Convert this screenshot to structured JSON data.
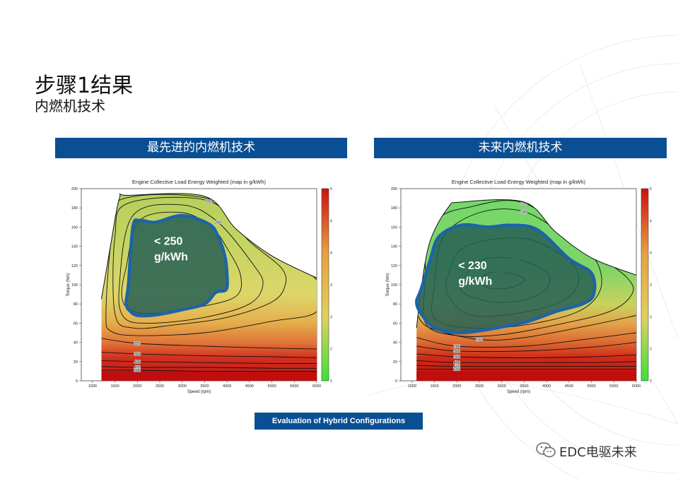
{
  "title": "步骤1结果",
  "subtitle": "内燃机技术",
  "panels": [
    {
      "header": "最先进的内燃机技术"
    },
    {
      "header": "未来内燃机技术"
    }
  ],
  "chart_data": [
    {
      "type": "heatmap",
      "title": "Engine Collective Load Energy Weighted (map in g/kWh)",
      "xlabel": "Speed (rpm)",
      "ylabel": "Torque (Nm)",
      "xlim": [
        750,
        6000
      ],
      "ylim": [
        0,
        200
      ],
      "xticks": [
        1000,
        1500,
        2000,
        2500,
        3000,
        3500,
        4000,
        4500,
        5000,
        5500,
        6000
      ],
      "yticks": [
        0,
        20,
        40,
        60,
        80,
        100,
        120,
        140,
        160,
        180,
        200
      ],
      "colorbar": {
        "min": 200,
        "max": 500,
        "ticks": [
          200,
          250,
          300,
          350,
          400,
          450,
          500
        ],
        "colors": [
          "#3ae23a",
          "#e0d060",
          "#e8a040",
          "#cc1010"
        ]
      },
      "max_torque_curve": [
        [
          1200,
          85
        ],
        [
          1400,
          140
        ],
        [
          1600,
          190
        ],
        [
          1800,
          193
        ],
        [
          3500,
          192
        ],
        [
          4200,
          158
        ],
        [
          5000,
          130
        ],
        [
          6000,
          107
        ]
      ],
      "contours": [
        {
          "level": 250,
          "points": [
            [
              1750,
              118
            ],
            [
              2050,
              167
            ],
            [
              3000,
              175
            ],
            [
              3650,
              160
            ],
            [
              4000,
              138
            ],
            [
              4300,
              110
            ],
            [
              4200,
              88
            ],
            [
              3400,
              77
            ],
            [
              2300,
              70
            ],
            [
              1800,
              75
            ],
            [
              1650,
              90
            ]
          ]
        },
        {
          "level": 260,
          "points": [
            [
              1600,
              100
            ],
            [
              1900,
              172
            ],
            [
              3000,
              183
            ],
            [
              3800,
              165
            ],
            [
              4600,
              120
            ],
            [
              4800,
              100
            ],
            [
              4500,
              80
            ],
            [
              3500,
              66
            ],
            [
              2300,
              60
            ],
            [
              1700,
              66
            ]
          ]
        },
        {
          "level": 280,
          "points": [
            [
              1500,
              70
            ],
            [
              1500,
              150
            ],
            [
              1800,
              185
            ],
            [
              3600,
              187
            ],
            [
              4500,
              145
            ],
            [
              5200,
              118
            ],
            [
              5300,
              100
            ],
            [
              5000,
              82
            ],
            [
              4000,
              66
            ],
            [
              2800,
              58
            ],
            [
              1900,
              55
            ]
          ]
        },
        {
          "level": 300,
          "points": [
            [
              1300,
              70
            ],
            [
              1400,
              140
            ],
            [
              1600,
              188
            ],
            [
              3700,
              188
            ],
            [
              4800,
              140
            ],
            [
              6000,
              105
            ],
            [
              6000,
              72
            ],
            [
              5000,
              62
            ],
            [
              3500,
              50
            ],
            [
              2000,
              47
            ],
            [
              1400,
              52
            ]
          ]
        },
        {
          "level": 320,
          "points": [
            [
              1100,
              45
            ],
            [
              2000,
              39
            ],
            [
              3500,
              36
            ],
            [
              5000,
              34
            ],
            [
              6000,
              33
            ]
          ]
        },
        {
          "level": 350,
          "points": [
            [
              1100,
              30
            ],
            [
              2000,
              28
            ],
            [
              3500,
              26
            ],
            [
              5000,
              25
            ],
            [
              6000,
              24
            ]
          ]
        },
        {
          "level": 400,
          "points": [
            [
              1100,
              21
            ],
            [
              2000,
              20
            ],
            [
              3500,
              19
            ],
            [
              5000,
              18
            ],
            [
              6000,
              18
            ]
          ]
        },
        {
          "level": 450,
          "points": [
            [
              1100,
              15
            ],
            [
              2000,
              14
            ],
            [
              3500,
              14
            ],
            [
              5000,
              13
            ],
            [
              6000,
              13
            ]
          ]
        },
        {
          "level": 500,
          "points": [
            [
              1100,
              11
            ],
            [
              2000,
              11
            ],
            [
              3500,
              10
            ],
            [
              5000,
              10
            ],
            [
              6000,
              10
            ]
          ]
        }
      ],
      "highlight": {
        "label_line1": "< 250",
        "label_line2": "g/kWh",
        "points": [
          [
            1800,
            100
          ],
          [
            1900,
            160
          ],
          [
            2050,
            167
          ],
          [
            2400,
            165
          ],
          [
            3000,
            172
          ],
          [
            3600,
            163
          ],
          [
            3800,
            150
          ],
          [
            3950,
            130
          ],
          [
            4000,
            110
          ],
          [
            3980,
            95
          ],
          [
            3750,
            92
          ],
          [
            3500,
            80
          ],
          [
            3000,
            74
          ],
          [
            2600,
            70
          ],
          [
            2300,
            68
          ],
          [
            2000,
            68
          ],
          [
            1850,
            72
          ],
          [
            1750,
            80
          ]
        ]
      }
    },
    {
      "type": "heatmap",
      "title": "Engine Collective Load Energy Weighted (map in g/kWh)",
      "xlabel": "Speed (rpm)",
      "ylabel": "Torque (Nm)",
      "xlim": [
        750,
        6000
      ],
      "ylim": [
        0,
        200
      ],
      "xticks": [
        1000,
        1500,
        2000,
        2500,
        3000,
        3500,
        4000,
        4500,
        5000,
        5500,
        6000
      ],
      "yticks": [
        0,
        20,
        40,
        60,
        80,
        100,
        120,
        140,
        160,
        180,
        200
      ],
      "colorbar": {
        "min": 200,
        "max": 500,
        "ticks": [
          200,
          250,
          300,
          350,
          400,
          450,
          500
        ],
        "colors": [
          "#3ae23a",
          "#e0d060",
          "#e8a040",
          "#cc1010"
        ]
      },
      "max_torque_curve": [
        [
          1100,
          55
        ],
        [
          1200,
          95
        ],
        [
          1400,
          145
        ],
        [
          1800,
          180
        ],
        [
          2100,
          186
        ],
        [
          3500,
          186
        ],
        [
          4200,
          155
        ],
        [
          5000,
          128
        ],
        [
          6000,
          110
        ]
      ],
      "contours": [
        {
          "level": 218,
          "points": [
            [
              2500,
              105
            ],
            [
              2700,
              112
            ],
            [
              3000,
              113
            ],
            [
              3400,
              109
            ],
            [
              3500,
              104
            ],
            [
              3200,
              97
            ],
            [
              2800,
              96
            ],
            [
              2550,
              100
            ]
          ]
        },
        {
          "level": 220,
          "points": [
            [
              2100,
              100
            ],
            [
              2500,
              125
            ],
            [
              3300,
              127
            ],
            [
              4000,
              113
            ],
            [
              4000,
              96
            ],
            [
              3500,
              84
            ],
            [
              2800,
              82
            ],
            [
              2200,
              90
            ]
          ]
        },
        {
          "level": 230,
          "points": [
            [
              1800,
              110
            ],
            [
              2200,
              140
            ],
            [
              3500,
              148
            ],
            [
              4500,
              125
            ],
            [
              4700,
              100
            ],
            [
              4200,
              80
            ],
            [
              3000,
              68
            ],
            [
              2200,
              70
            ],
            [
              1800,
              90
            ]
          ]
        },
        {
          "level": 240,
          "points": [
            [
              1500,
              100
            ],
            [
              1700,
              150
            ],
            [
              2500,
              175
            ],
            [
              3500,
              176
            ],
            [
              4500,
              148
            ],
            [
              5100,
              125
            ],
            [
              5200,
              95
            ],
            [
              4700,
              72
            ],
            [
              3500,
              58
            ],
            [
              2300,
              55
            ],
            [
              1500,
              65
            ]
          ]
        },
        {
          "level": 250,
          "points": [
            [
              1300,
              110
            ],
            [
              1300,
              150
            ],
            [
              1600,
              170
            ],
            [
              2200,
              180
            ],
            [
              3500,
              185
            ],
            [
              5000,
              135
            ],
            [
              5800,
              107
            ],
            [
              5900,
              90
            ],
            [
              5400,
              72
            ],
            [
              4200,
              58
            ],
            [
              3000,
              48
            ],
            [
              2000,
              47
            ],
            [
              1300,
              60
            ]
          ]
        },
        {
          "level": 260,
          "points": [
            [
              1100,
              70
            ],
            [
              1400,
              55
            ],
            [
              2500,
              43
            ],
            [
              3500,
              45
            ],
            [
              5000,
              58
            ],
            [
              6000,
              68
            ]
          ]
        },
        {
          "level": 280,
          "points": [
            [
              1100,
              45
            ],
            [
              2000,
              36
            ],
            [
              3500,
              36
            ],
            [
              5000,
              44
            ],
            [
              6000,
              50
            ]
          ]
        },
        {
          "level": 300,
          "points": [
            [
              1100,
              36
            ],
            [
              2000,
              31
            ],
            [
              3500,
              31
            ],
            [
              5000,
              35
            ],
            [
              6000,
              40
            ]
          ]
        },
        {
          "level": 350,
          "points": [
            [
              1100,
              28
            ],
            [
              2000,
              25
            ],
            [
              3500,
              24
            ],
            [
              5000,
              25
            ],
            [
              6000,
              27
            ]
          ]
        },
        {
          "level": 400,
          "points": [
            [
              1100,
              21
            ],
            [
              2000,
              19
            ],
            [
              3500,
              19
            ],
            [
              5000,
              19
            ],
            [
              6000,
              20
            ]
          ]
        },
        {
          "level": 450,
          "points": [
            [
              1100,
              16
            ],
            [
              2000,
              15
            ],
            [
              3500,
              15
            ],
            [
              5000,
              15
            ],
            [
              6000,
              15
            ]
          ]
        },
        {
          "level": 500,
          "points": [
            [
              1100,
              12
            ],
            [
              2000,
              12
            ],
            [
              3500,
              12
            ],
            [
              5000,
              12
            ],
            [
              6000,
              12
            ]
          ]
        }
      ],
      "highlight": {
        "label_line1": "< 230",
        "label_line2": "g/kWh",
        "points": [
          [
            1200,
            95
          ],
          [
            1400,
            125
          ],
          [
            1600,
            150
          ],
          [
            2100,
            162
          ],
          [
            2700,
            160
          ],
          [
            3200,
            162
          ],
          [
            3800,
            157
          ],
          [
            4500,
            127
          ],
          [
            5000,
            112
          ],
          [
            5050,
            90
          ],
          [
            4800,
            80
          ],
          [
            4200,
            72
          ],
          [
            3600,
            62
          ],
          [
            3000,
            56
          ],
          [
            2500,
            52
          ],
          [
            2000,
            50
          ],
          [
            1500,
            55
          ],
          [
            1200,
            70
          ],
          [
            1100,
            82
          ]
        ]
      }
    }
  ],
  "footer": {
    "label": "Evaluation of Hybrid Configurations"
  },
  "brand": {
    "text": "EDC电驱未来",
    "icon": "wechat-icon"
  }
}
